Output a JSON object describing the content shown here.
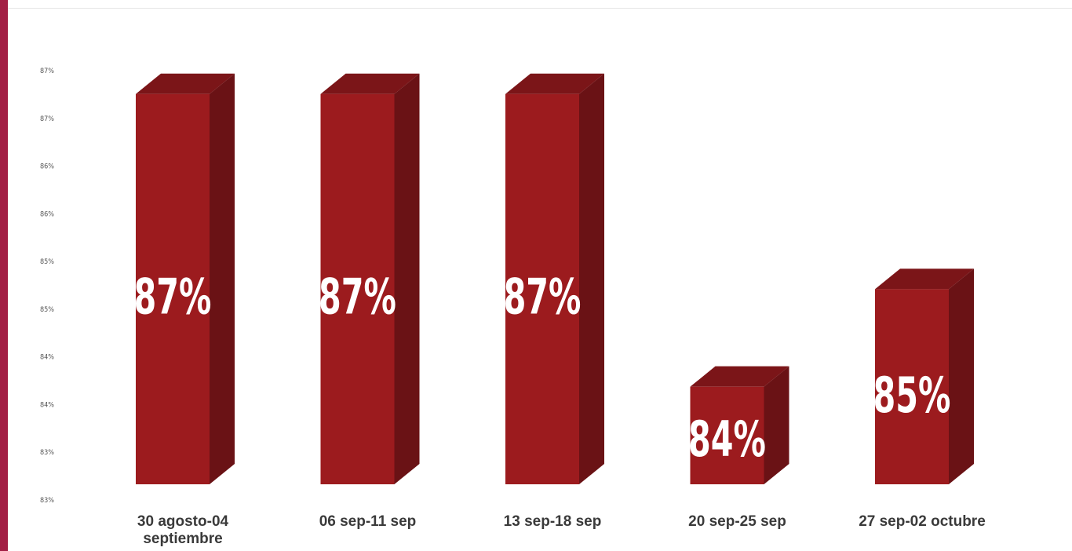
{
  "colors": {
    "bar_front": "#9c1b1e",
    "bar_side": "#6a1215",
    "bar_top": "#7b1518",
    "strip": "#a31f45"
  },
  "chart_data": {
    "type": "bar",
    "categories": [
      "30 agosto-04 septiembre",
      "06 sep-11 sep",
      "13 sep-18 sep",
      "20 sep-25 sep",
      "27 sep-02 octubre"
    ],
    "values": [
      87,
      87,
      87,
      84,
      85
    ],
    "data_labels": [
      "87%",
      "87%",
      "87%",
      "84%",
      "85%"
    ],
    "y_tick_labels": [
      "87%",
      "87%",
      "86%",
      "86%",
      "85%",
      "85%",
      "84%",
      "84%",
      "83%",
      "83%"
    ],
    "ylim": [
      83,
      87.4
    ],
    "title": "",
    "xlabel": "",
    "ylabel": "",
    "grid": false,
    "legend": "none"
  }
}
